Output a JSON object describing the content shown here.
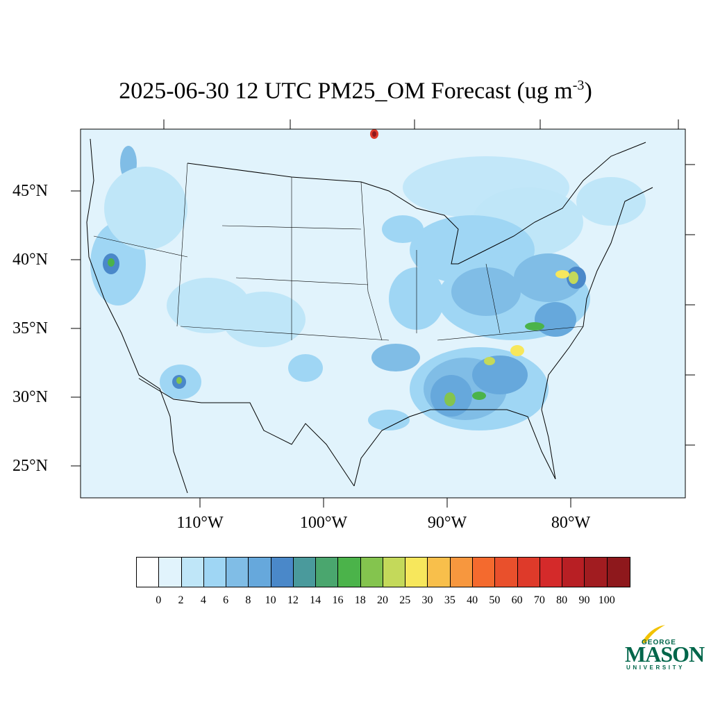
{
  "title": {
    "main": "2025-06-30 12 UTC PM25_OM Forecast (ug m",
    "superscript": "-3",
    "close": ")"
  },
  "map": {
    "lat_labels": [
      "45°N",
      "40°N",
      "35°N",
      "30°N",
      "25°N"
    ],
    "lon_labels": [
      "110°W",
      "100°W",
      "90°W",
      "80°W"
    ]
  },
  "colorbar": {
    "labels": [
      "0",
      "2",
      "4",
      "6",
      "8",
      "10",
      "12",
      "14",
      "16",
      "18",
      "20",
      "25",
      "30",
      "35",
      "40",
      "50",
      "60",
      "70",
      "80",
      "90",
      "100"
    ],
    "colors": [
      "#ffffff",
      "#e1f3fc",
      "#bfe6f8",
      "#9fd6f4",
      "#80bde6",
      "#66a8dc",
      "#4a88c9",
      "#4a9a9c",
      "#4aa66e",
      "#4bb34a",
      "#84c44e",
      "#c4d95a",
      "#f7e75c",
      "#f8bf4b",
      "#f7973e",
      "#f46a2e",
      "#e9502c",
      "#de3a2a",
      "#d42a2a",
      "#b81f24",
      "#a11c20",
      "#8e181c"
    ]
  },
  "logo": {
    "line1": "GEORGE",
    "line2": "MASON",
    "line3": "UNIVERSITY",
    "color": "#00664a",
    "accent": "#f2c200"
  }
}
